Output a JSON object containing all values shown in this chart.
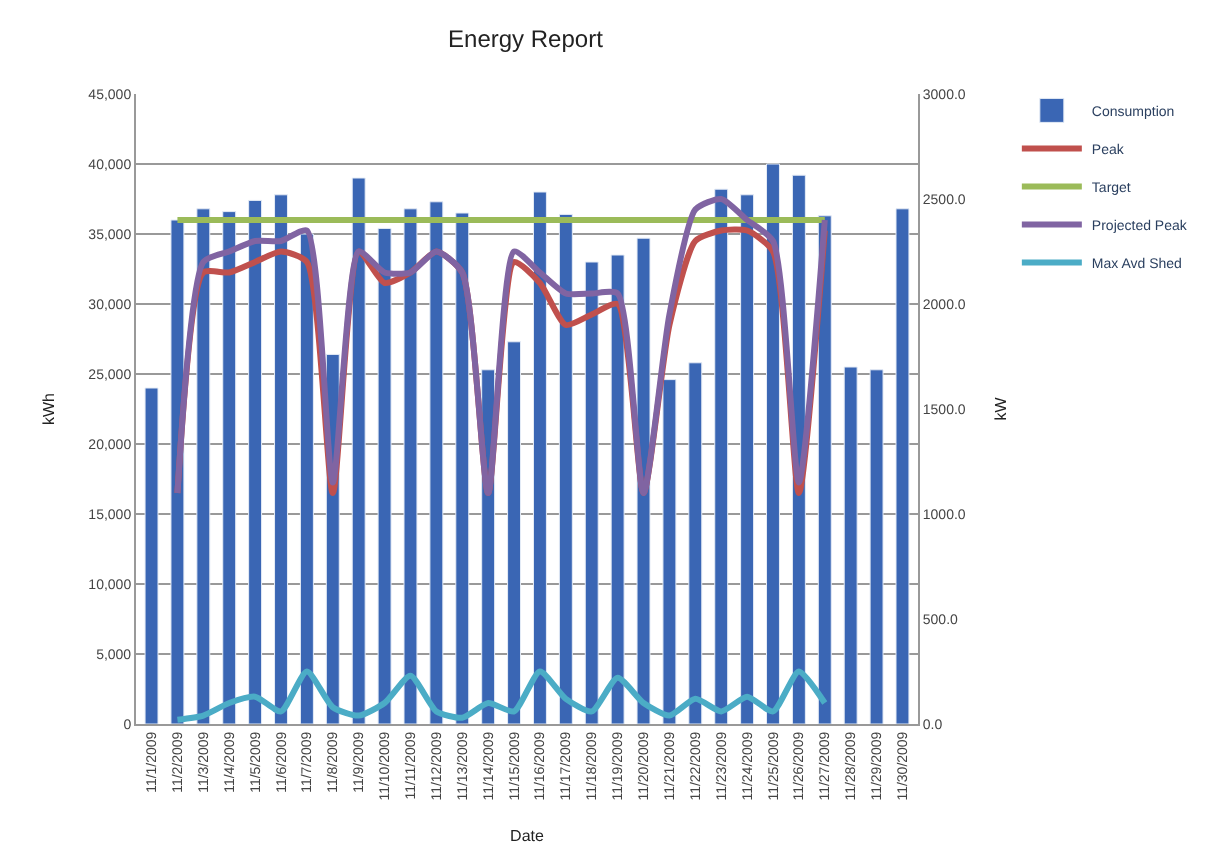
{
  "chart_data": {
    "type": "bar",
    "title": "Energy Report",
    "xlabel": "Date",
    "ylabel": "kWh",
    "y2label": "kW",
    "categories": [
      "11/1/2009",
      "11/2/2009",
      "11/3/2009",
      "11/4/2009",
      "11/5/2009",
      "11/6/2009",
      "11/7/2009",
      "11/8/2009",
      "11/9/2009",
      "11/10/2009",
      "11/11/2009",
      "11/12/2009",
      "11/13/2009",
      "11/14/2009",
      "11/15/2009",
      "11/16/2009",
      "11/17/2009",
      "11/18/2009",
      "11/19/2009",
      "11/20/2009",
      "11/21/2009",
      "11/22/2009",
      "11/23/2009",
      "11/24/2009",
      "11/25/2009",
      "11/26/2009",
      "11/27/2009",
      "11/28/2009",
      "11/29/2009",
      "11/30/2009"
    ],
    "series": [
      {
        "name": "Consumption",
        "color": "#3a66b4",
        "values": [
          24000,
          36000,
          36800,
          36600,
          37400,
          37800,
          35000,
          26400,
          39000,
          35400,
          36800,
          37300,
          36500,
          25300,
          27300,
          38000,
          36400,
          33000,
          33500,
          34700,
          24600,
          25800,
          38200,
          37800,
          40000,
          39200,
          36300,
          25500,
          25300,
          36800
        ]
      },
      {
        "name": "Peak",
        "type": "line",
        "axis": "y2",
        "color": "#c0504d",
        "values": [
          null,
          1100,
          2150,
          2150,
          2200,
          2250,
          2200,
          1100,
          2250,
          2100,
          2150,
          2250,
          2150,
          1100,
          2200,
          2100,
          1900,
          1950,
          2000,
          1100,
          1900,
          2300,
          2350,
          2350,
          2250,
          1100,
          2350,
          null,
          null,
          null
        ]
      },
      {
        "name": "Target",
        "type": "line",
        "axis": "y2",
        "color": "#9bbb59",
        "values": [
          null,
          2400,
          2400,
          2400,
          2400,
          2400,
          2400,
          2400,
          2400,
          2400,
          2400,
          2400,
          2400,
          2400,
          2400,
          2400,
          2400,
          2400,
          2400,
          2400,
          2400,
          2400,
          2400,
          2400,
          2400,
          2400,
          2400,
          null,
          null,
          null
        ]
      },
      {
        "name": "Projected Peak",
        "type": "line",
        "axis": "y2",
        "color": "#8064a2",
        "values": [
          null,
          1100,
          2200,
          2250,
          2300,
          2300,
          2350,
          1150,
          2250,
          2150,
          2150,
          2250,
          2150,
          1100,
          2250,
          2150,
          2050,
          2050,
          2050,
          1100,
          1950,
          2450,
          2500,
          2400,
          2300,
          1150,
          2400,
          null,
          null,
          null
        ]
      },
      {
        "name": "Max Avd Shed",
        "type": "line",
        "axis": "y2",
        "color": "#4bacc6",
        "values": [
          null,
          20,
          40,
          100,
          130,
          60,
          250,
          80,
          40,
          100,
          230,
          60,
          30,
          100,
          60,
          250,
          120,
          60,
          220,
          100,
          40,
          120,
          60,
          130,
          60,
          250,
          100,
          null,
          null,
          null
        ]
      }
    ],
    "ylim": [
      0,
      45000
    ],
    "yticks": [
      {
        "value": 0,
        "label": "0"
      },
      {
        "value": 5000,
        "label": "5,000"
      },
      {
        "value": 10000,
        "label": "10,000"
      },
      {
        "value": 15000,
        "label": "15,000"
      },
      {
        "value": 20000,
        "label": "20,000"
      },
      {
        "value": 25000,
        "label": "25,000"
      },
      {
        "value": 30000,
        "label": "30,000"
      },
      {
        "value": 35000,
        "label": "35,000"
      },
      {
        "value": 40000,
        "label": "40,000"
      },
      {
        "value": 45000,
        "label": "45,000"
      }
    ],
    "y2lim": [
      0,
      3000
    ],
    "y2ticks": [
      {
        "value": 0,
        "label": "0.0"
      },
      {
        "value": 500,
        "label": "500.0"
      },
      {
        "value": 1000,
        "label": "1000.0"
      },
      {
        "value": 1500,
        "label": "1500.0"
      },
      {
        "value": 2000,
        "label": "2000.0"
      },
      {
        "value": 2500,
        "label": "2500.0"
      },
      {
        "value": 3000,
        "label": "3000.0"
      }
    ],
    "grid": "y",
    "legend": "top right",
    "marker": "none",
    "line_style": "solid"
  }
}
